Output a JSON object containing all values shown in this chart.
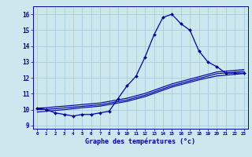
{
  "title": "Graphe des températures (°c)",
  "bg_color": "#cce8ee",
  "line_color": "#0000aa",
  "grid_color": "#aaccdd",
  "x_values": [
    0,
    1,
    2,
    3,
    4,
    5,
    6,
    7,
    8,
    9,
    10,
    11,
    12,
    13,
    14,
    15,
    16,
    17,
    18,
    19,
    20,
    21,
    22,
    23
  ],
  "temp_main": [
    10.1,
    10.0,
    9.8,
    9.7,
    9.6,
    9.7,
    9.7,
    9.8,
    9.9,
    10.7,
    11.5,
    12.1,
    13.3,
    14.7,
    15.8,
    16.0,
    15.4,
    15.0,
    13.7,
    13.0,
    12.7,
    12.3,
    12.3,
    12.3
  ],
  "trend1": [
    10.1,
    10.12,
    10.18,
    10.22,
    10.27,
    10.32,
    10.37,
    10.42,
    10.52,
    10.62,
    10.72,
    10.87,
    11.02,
    11.22,
    11.42,
    11.62,
    11.77,
    11.92,
    12.07,
    12.22,
    12.37,
    12.42,
    12.47,
    12.52
  ],
  "trend2": [
    10.0,
    10.02,
    10.06,
    10.11,
    10.16,
    10.21,
    10.26,
    10.31,
    10.41,
    10.51,
    10.61,
    10.76,
    10.91,
    11.11,
    11.31,
    11.51,
    11.66,
    11.81,
    11.96,
    12.11,
    12.26,
    12.31,
    12.36,
    12.41
  ],
  "trend3": [
    9.85,
    9.9,
    9.95,
    10.0,
    10.06,
    10.12,
    10.17,
    10.22,
    10.32,
    10.42,
    10.52,
    10.67,
    10.82,
    11.02,
    11.22,
    11.42,
    11.57,
    11.72,
    11.87,
    12.0,
    12.12,
    12.17,
    12.22,
    12.27
  ],
  "xlim": [
    -0.5,
    23.5
  ],
  "ylim": [
    8.8,
    16.5
  ],
  "yticks": [
    9,
    10,
    11,
    12,
    13,
    14,
    15,
    16
  ],
  "xticks": [
    0,
    1,
    2,
    3,
    4,
    5,
    6,
    7,
    8,
    9,
    10,
    11,
    12,
    13,
    14,
    15,
    16,
    17,
    18,
    19,
    20,
    21,
    22,
    23
  ]
}
